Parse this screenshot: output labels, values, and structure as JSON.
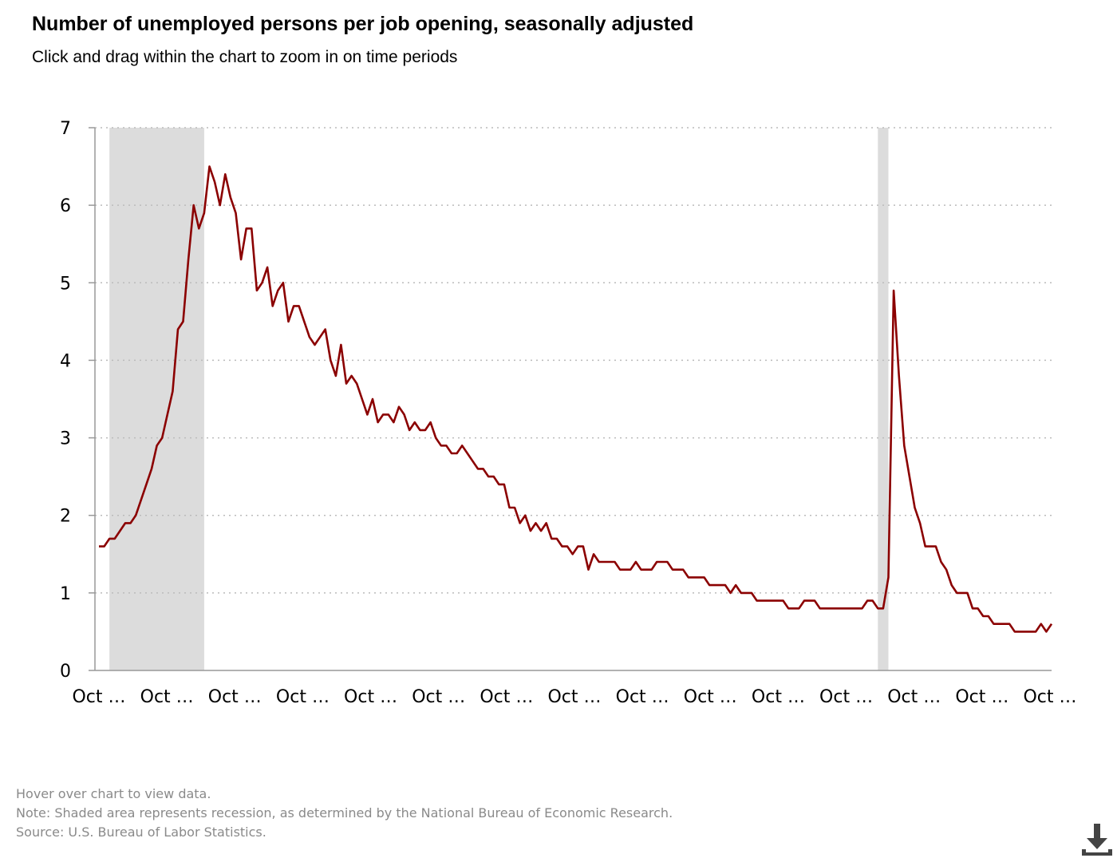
{
  "header": {
    "title": "Number of unemployed persons per job opening, seasonally adjusted",
    "subtitle": "Click and drag within the chart to zoom in on time periods"
  },
  "chart_data": {
    "type": "line",
    "title": "Number of unemployed persons per job opening, seasonally adjusted",
    "xlabel": "",
    "ylabel": "",
    "ylim": [
      0,
      7
    ],
    "yticks": [
      0,
      1,
      2,
      3,
      4,
      5,
      6,
      7
    ],
    "x_tick_labels": [
      "Oct …",
      "Oct …",
      "Oct …",
      "Oct …",
      "Oct …",
      "Oct …",
      "Oct …",
      "Oct …",
      "Oct …",
      "Oct …",
      "Oct …",
      "Oct …",
      "Oct …",
      "Oct …",
      "Oct …"
    ],
    "grid": "horizontal dotted",
    "line_color": "#8b0000",
    "recession_color": "#dcdcdc",
    "recessions": [
      {
        "start_index": 2,
        "end_index": 20
      },
      {
        "start_index": 148,
        "end_index": 150
      }
    ],
    "series": [
      {
        "values": [
          1.6,
          1.6,
          1.7,
          1.7,
          1.8,
          1.9,
          1.9,
          2.0,
          2.2,
          2.4,
          2.6,
          2.9,
          3.0,
          3.3,
          3.6,
          4.4,
          4.5,
          5.3,
          6.0,
          5.7,
          5.9,
          6.5,
          6.3,
          6.0,
          6.4,
          6.1,
          5.9,
          5.3,
          5.7,
          5.7,
          4.9,
          5.0,
          5.2,
          4.7,
          4.9,
          5.0,
          4.5,
          4.7,
          4.7,
          4.5,
          4.3,
          4.2,
          4.3,
          4.4,
          4.0,
          3.8,
          4.2,
          3.7,
          3.8,
          3.7,
          3.5,
          3.3,
          3.5,
          3.2,
          3.3,
          3.3,
          3.2,
          3.4,
          3.3,
          3.1,
          3.2,
          3.1,
          3.1,
          3.2,
          3.0,
          2.9,
          2.9,
          2.8,
          2.8,
          2.9,
          2.8,
          2.7,
          2.6,
          2.6,
          2.5,
          2.5,
          2.4,
          2.4,
          2.1,
          2.1,
          1.9,
          2.0,
          1.8,
          1.9,
          1.8,
          1.9,
          1.7,
          1.7,
          1.6,
          1.6,
          1.5,
          1.6,
          1.6,
          1.3,
          1.5,
          1.4,
          1.4,
          1.4,
          1.4,
          1.3,
          1.3,
          1.3,
          1.4,
          1.3,
          1.3,
          1.3,
          1.4,
          1.4,
          1.4,
          1.3,
          1.3,
          1.3,
          1.2,
          1.2,
          1.2,
          1.2,
          1.1,
          1.1,
          1.1,
          1.1,
          1.0,
          1.1,
          1.0,
          1.0,
          1.0,
          0.9,
          0.9,
          0.9,
          0.9,
          0.9,
          0.9,
          0.8,
          0.8,
          0.8,
          0.9,
          0.9,
          0.9,
          0.8,
          0.8,
          0.8,
          0.8,
          0.8,
          0.8,
          0.8,
          0.8,
          0.8,
          0.9,
          0.9,
          0.8,
          0.8,
          1.2,
          4.9,
          3.8,
          2.9,
          2.5,
          2.1,
          1.9,
          1.6,
          1.6,
          1.6,
          1.4,
          1.3,
          1.1,
          1.0,
          1.0,
          1.0,
          0.8,
          0.8,
          0.7,
          0.7,
          0.6,
          0.6,
          0.6,
          0.6,
          0.5,
          0.5,
          0.5,
          0.5,
          0.5,
          0.6,
          0.5,
          0.6
        ]
      }
    ]
  },
  "footer": {
    "notes": [
      "Hover over chart to view data.",
      "Note: Shaded area represents recession, as determined by the National Bureau of Economic Research.",
      "Source: U.S. Bureau of Labor Statistics."
    ]
  },
  "toolbar": {
    "download_icon": "download-icon"
  }
}
